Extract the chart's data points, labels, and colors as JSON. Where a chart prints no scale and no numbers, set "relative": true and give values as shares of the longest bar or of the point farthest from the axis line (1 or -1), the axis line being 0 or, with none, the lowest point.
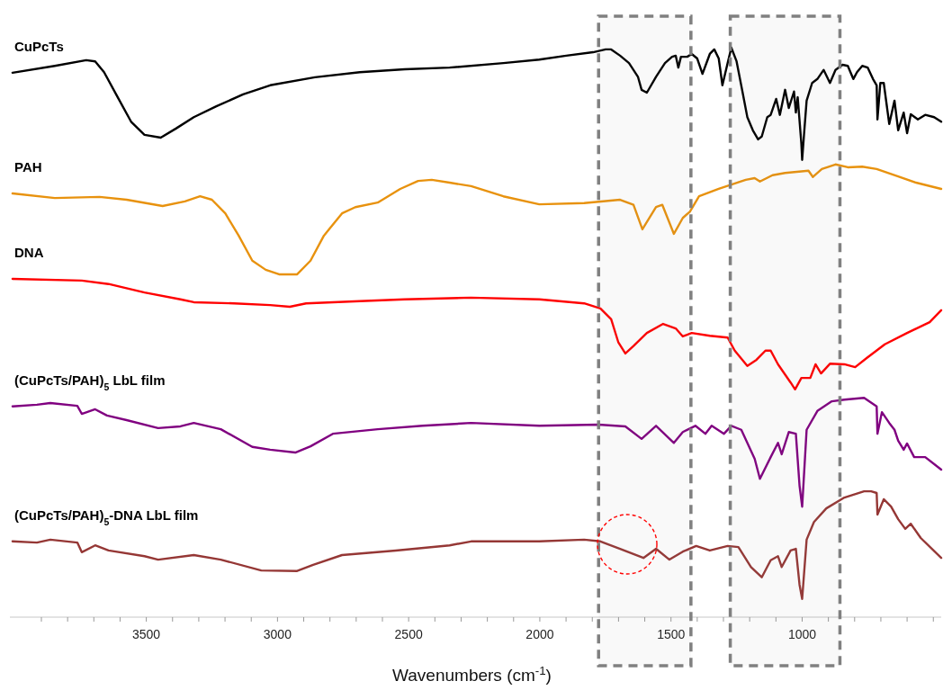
{
  "chart_data": {
    "type": "line",
    "relative": true,
    "xlabel": "Wavenumbers (cm$^{-1}$)",
    "legend": false,
    "grid": false,
    "marker": "none",
    "line_style": "solid",
    "xlim": [
      4020,
      470
    ],
    "xticks": [
      {
        "value": 3900,
        "label": null
      },
      {
        "value": 3800,
        "label": null
      },
      {
        "value": 3700,
        "label": null
      },
      {
        "value": 3600,
        "label": null
      },
      3500,
      {
        "value": 3400,
        "label": null
      },
      {
        "value": 3300,
        "label": null
      },
      {
        "value": 3200,
        "label": null
      },
      {
        "value": 3100,
        "label": null
      },
      3000,
      {
        "value": 2900,
        "label": null
      },
      {
        "value": 2800,
        "label": null
      },
      {
        "value": 2700,
        "label": null
      },
      {
        "value": 2600,
        "label": null
      },
      2500,
      {
        "value": 2400,
        "label": null
      },
      {
        "value": 2300,
        "label": null
      },
      {
        "value": 2200,
        "label": null
      },
      {
        "value": 2100,
        "label": null
      },
      2000,
      {
        "value": 1900,
        "label": null
      },
      {
        "value": 1800,
        "label": null
      },
      {
        "value": 1700,
        "label": null
      },
      {
        "value": 1600,
        "label": null
      },
      1500,
      {
        "value": 1400,
        "label": null
      },
      {
        "value": 1300,
        "label": null
      },
      {
        "value": 1200,
        "label": null
      },
      {
        "value": 1100,
        "label": null
      },
      1000,
      {
        "value": 900,
        "label": null
      },
      {
        "value": 800,
        "label": null
      },
      {
        "value": 700,
        "label": null
      },
      {
        "value": 600,
        "label": null
      },
      {
        "value": 500,
        "label": null
      }
    ],
    "bands": [
      {
        "axis": "x",
        "from": 1776,
        "to": 1424,
        "color": "#808080"
      },
      {
        "axis": "x",
        "from": 1274,
        "to": 856,
        "color": "#808080"
      }
    ],
    "series": [
      {
        "name": "CuPcTs",
        "color": "#000000",
        "x": [
          4010,
          3849,
          3729,
          3695,
          3661,
          3609,
          3558,
          3507,
          3445,
          3387,
          3319,
          3233,
          3131,
          3028,
          2857,
          2686,
          2515,
          2344,
          2139,
          2002,
          1899,
          1797,
          1749,
          1728,
          1694,
          1660,
          1626,
          1612,
          1592,
          1557,
          1523,
          1496,
          1482,
          1472,
          1462,
          1438,
          1421,
          1400,
          1380,
          1352,
          1335,
          1318,
          1304,
          1284,
          1270,
          1250,
          1229,
          1209,
          1188,
          1168,
          1154,
          1133,
          1120,
          1099,
          1085,
          1065,
          1051,
          1031,
          1024,
          1017,
          1003,
          1000,
          993,
          983,
          962,
          942,
          918,
          894,
          873,
          846,
          826,
          805,
          791,
          771,
          750,
          730,
          716,
          713,
          702,
          689,
          668,
          648,
          634,
          613,
          600,
          586,
          559,
          531,
          497,
          470
        ],
        "values": [
          0.956,
          0.968,
          0.978,
          0.976,
          0.957,
          0.913,
          0.87,
          0.847,
          0.842,
          0.858,
          0.878,
          0.897,
          0.918,
          0.934,
          0.948,
          0.957,
          0.962,
          0.965,
          0.973,
          0.979,
          0.986,
          0.992,
          0.997,
          0.997,
          0.986,
          0.973,
          0.949,
          0.926,
          0.921,
          0.949,
          0.973,
          0.984,
          0.986,
          0.965,
          0.984,
          0.984,
          0.989,
          0.981,
          0.954,
          0.989,
          0.997,
          0.981,
          0.934,
          0.973,
          1.0,
          0.976,
          0.926,
          0.878,
          0.855,
          0.839,
          0.844,
          0.878,
          0.882,
          0.91,
          0.882,
          0.926,
          0.894,
          0.923,
          0.886,
          0.913,
          0.831,
          0.803,
          0.847,
          0.907,
          0.938,
          0.945,
          0.961,
          0.938,
          0.961,
          0.97,
          0.968,
          0.945,
          0.957,
          0.968,
          0.965,
          0.945,
          0.934,
          0.874,
          0.938,
          0.938,
          0.866,
          0.907,
          0.855,
          0.886,
          0.85,
          0.883,
          0.874,
          0.882,
          0.878,
          0.87
        ]
      },
      {
        "name": "PAH",
        "color": "#e8920e",
        "x": [
          4010,
          3849,
          3678,
          3575,
          3438,
          3353,
          3295,
          3250,
          3199,
          3148,
          3096,
          3045,
          2994,
          2925,
          2874,
          2823,
          2754,
          2703,
          2618,
          2532,
          2464,
          2412,
          2344,
          2262,
          2139,
          2002,
          1831,
          1694,
          1643,
          1609,
          1557,
          1533,
          1489,
          1455,
          1428,
          1393,
          1318,
          1215,
          1181,
          1161,
          1113,
          1065,
          976,
          959,
          925,
          873,
          826,
          771,
          716,
          634,
          566,
          470
        ],
        "values": [
          0.744,
          0.736,
          0.738,
          0.733,
          0.722,
          0.73,
          0.739,
          0.733,
          0.709,
          0.67,
          0.626,
          0.61,
          0.602,
          0.602,
          0.626,
          0.67,
          0.709,
          0.72,
          0.728,
          0.752,
          0.766,
          0.768,
          0.763,
          0.757,
          0.739,
          0.725,
          0.727,
          0.733,
          0.724,
          0.681,
          0.72,
          0.724,
          0.673,
          0.701,
          0.712,
          0.739,
          0.752,
          0.768,
          0.771,
          0.765,
          0.776,
          0.78,
          0.784,
          0.773,
          0.787,
          0.795,
          0.79,
          0.791,
          0.787,
          0.774,
          0.763,
          0.752
        ]
      },
      {
        "name": "DNA",
        "color": "#ff0000",
        "x": [
          4010,
          3746,
          3644,
          3507,
          3370,
          3319,
          3165,
          3028,
          2953,
          2891,
          2686,
          2515,
          2262,
          2002,
          1831,
          1769,
          1728,
          1701,
          1674,
          1643,
          1592,
          1530,
          1482,
          1455,
          1421,
          1352,
          1284,
          1257,
          1209,
          1174,
          1140,
          1120,
          1092,
          1044,
          1027,
          1003,
          969,
          949,
          928,
          894,
          839,
          798,
          754,
          685,
          600,
          514,
          470
        ],
        "values": [
          0.594,
          0.591,
          0.585,
          0.57,
          0.558,
          0.553,
          0.551,
          0.548,
          0.545,
          0.551,
          0.555,
          0.558,
          0.561,
          0.558,
          0.551,
          0.542,
          0.523,
          0.483,
          0.463,
          0.476,
          0.499,
          0.515,
          0.507,
          0.493,
          0.499,
          0.494,
          0.491,
          0.468,
          0.441,
          0.452,
          0.468,
          0.468,
          0.444,
          0.412,
          0.4,
          0.42,
          0.42,
          0.444,
          0.428,
          0.445,
          0.444,
          0.439,
          0.455,
          0.479,
          0.499,
          0.518,
          0.539
        ]
      },
      {
        "name": "(CuPcTs/PAH)$_{5}$ LbL film",
        "color": "#800080",
        "x": [
          4010,
          3917,
          3866,
          3763,
          3746,
          3695,
          3650,
          3575,
          3455,
          3370,
          3319,
          3216,
          3096,
          3028,
          2932,
          2874,
          2789,
          2618,
          2447,
          2262,
          2002,
          1776,
          1674,
          1612,
          1557,
          1489,
          1455,
          1407,
          1369,
          1345,
          1298,
          1270,
          1232,
          1181,
          1161,
          1120,
          1092,
          1078,
          1051,
          1024,
          1010,
          1000,
          983,
          942,
          887,
          839,
          764,
          716,
          713,
          696,
          668,
          648,
          634,
          613,
          600,
          573,
          531,
          470
        ],
        "values": [
          0.37,
          0.373,
          0.376,
          0.371,
          0.357,
          0.365,
          0.354,
          0.346,
          0.332,
          0.335,
          0.341,
          0.33,
          0.299,
          0.294,
          0.289,
          0.3,
          0.322,
          0.33,
          0.336,
          0.341,
          0.336,
          0.338,
          0.335,
          0.313,
          0.336,
          0.306,
          0.325,
          0.336,
          0.322,
          0.336,
          0.322,
          0.336,
          0.329,
          0.278,
          0.243,
          0.281,
          0.306,
          0.286,
          0.325,
          0.322,
          0.231,
          0.194,
          0.329,
          0.362,
          0.379,
          0.382,
          0.385,
          0.37,
          0.322,
          0.36,
          0.341,
          0.329,
          0.31,
          0.294,
          0.305,
          0.281,
          0.281,
          0.259
        ]
      },
      {
        "name": "(CuPcTs/PAH)$_{5}$-DNA LbL film",
        "color": "#953735",
        "x": [
          4010,
          3917,
          3866,
          3763,
          3746,
          3695,
          3644,
          3507,
          3455,
          3319,
          3216,
          3062,
          2925,
          2864,
          2754,
          2549,
          2344,
          2262,
          2002,
          1831,
          1769,
          1694,
          1605,
          1557,
          1506,
          1455,
          1404,
          1352,
          1284,
          1243,
          1195,
          1154,
          1120,
          1092,
          1078,
          1044,
          1024,
          1010,
          1000,
          983,
          955,
          908,
          839,
          764,
          737,
          716,
          713,
          689,
          661,
          634,
          607,
          586,
          548,
          470
        ],
        "values": [
          0.133,
          0.131,
          0.136,
          0.131,
          0.114,
          0.126,
          0.117,
          0.107,
          0.101,
          0.109,
          0.101,
          0.082,
          0.081,
          0.092,
          0.109,
          0.117,
          0.126,
          0.133,
          0.133,
          0.136,
          0.133,
          0.12,
          0.104,
          0.12,
          0.101,
          0.115,
          0.125,
          0.117,
          0.125,
          0.123,
          0.088,
          0.07,
          0.1,
          0.107,
          0.088,
          0.117,
          0.12,
          0.057,
          0.032,
          0.136,
          0.167,
          0.191,
          0.21,
          0.221,
          0.221,
          0.218,
          0.18,
          0.207,
          0.194,
          0.172,
          0.155,
          0.164,
          0.139,
          0.104
        ]
      }
    ]
  }
}
